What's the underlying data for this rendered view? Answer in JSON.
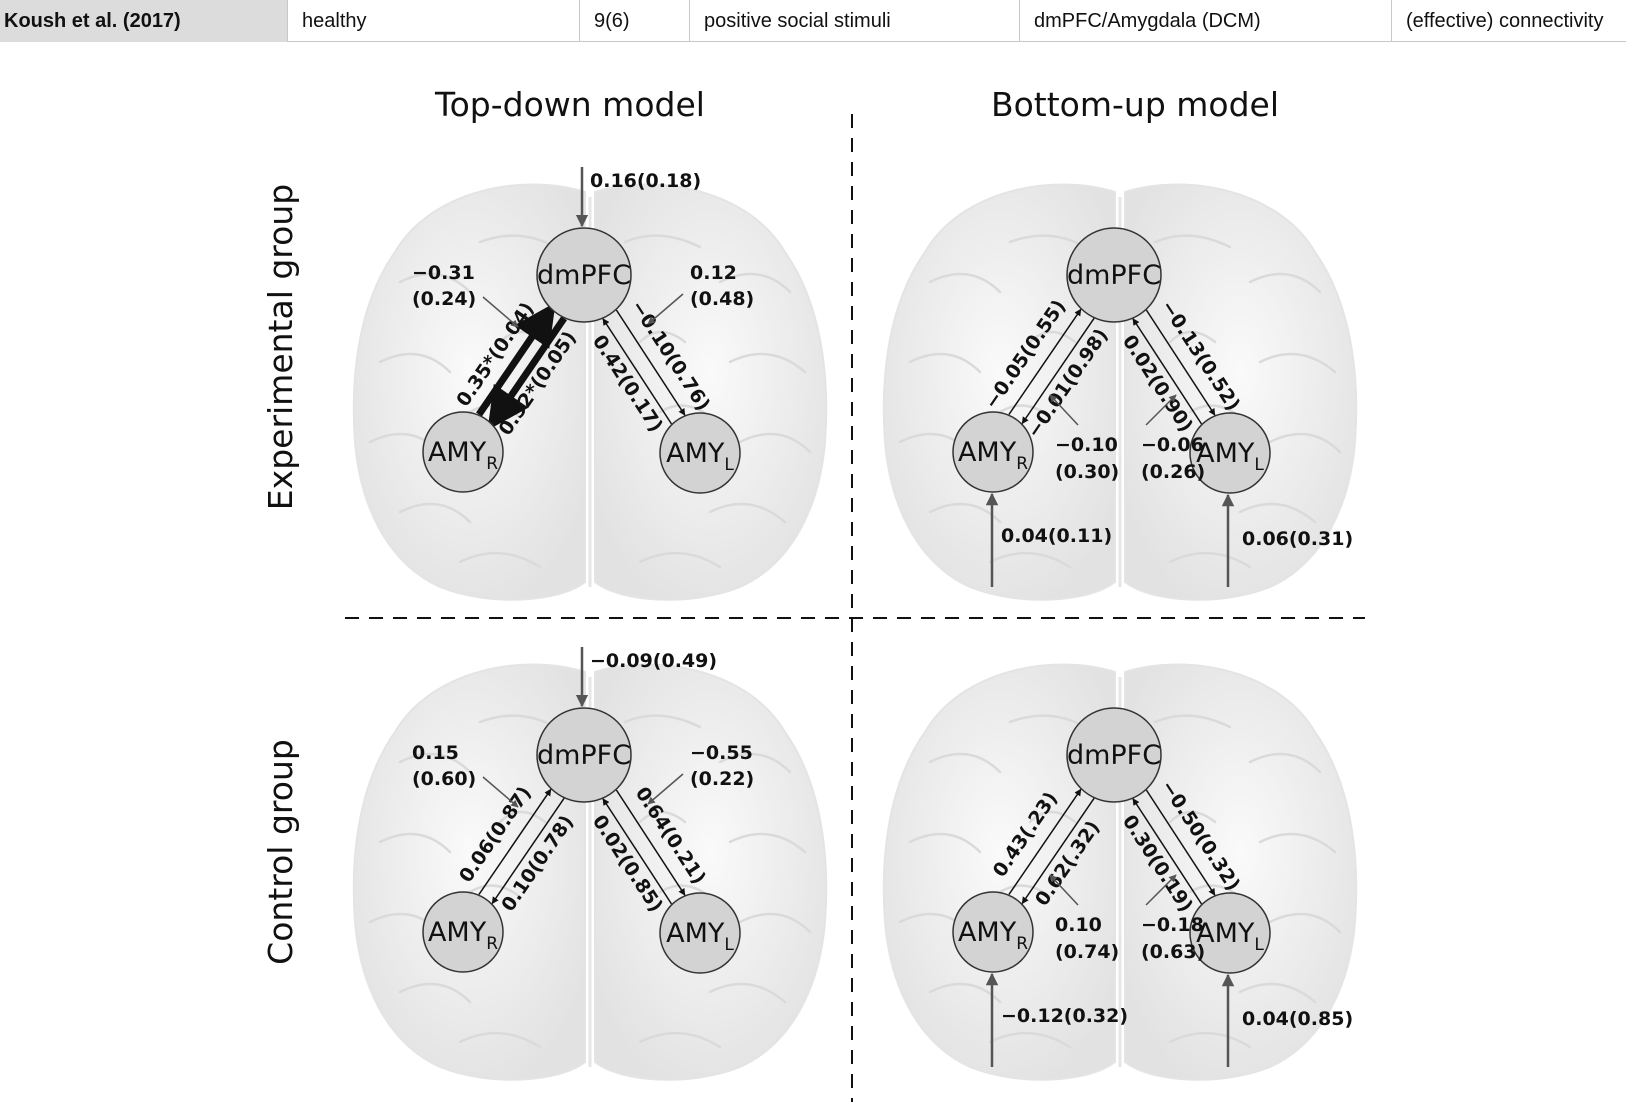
{
  "table": {
    "cells": [
      "Koush et al. (2017)",
      "healthy",
      "9(6)",
      "positive social stimuli",
      "dmPFC/Amygdala (DCM)",
      "(effective) connectivity"
    ]
  },
  "figure": {
    "col_titles": [
      "Top-down model",
      "Bottom-up model"
    ],
    "row_titles": [
      "Experimental group",
      "Control group"
    ],
    "nodes": {
      "dmpfc": "dmPFC",
      "amy": "AMY",
      "right_sub": "R",
      "left_sub": "L"
    },
    "panels": [
      {
        "model": "top-down",
        "input_dmpfc": "0.16(0.18)",
        "mod_r": [
          "−0.31",
          "(0.24)"
        ],
        "mod_l": [
          "0.12",
          "(0.48)"
        ],
        "edge_d_to_r": "0.52*(0.05)",
        "edge_r_to_d": "0.35*(0.04)",
        "edge_l_to_d": "0.42(0.17)",
        "edge_d_to_l": "−0.10(0.76)"
      },
      {
        "model": "bottom-up",
        "edge_d_to_r": "−0.01(0.98)",
        "edge_r_to_d": "−0.05(0.55)",
        "edge_l_to_d": "0.02(0.90)",
        "edge_d_to_l": "−0.13(0.52)",
        "mod_r": [
          "−0.10",
          "(0.30)"
        ],
        "mod_l": [
          "−0.06",
          "(0.26)"
        ],
        "input_r": "0.04(0.11)",
        "input_l": "0.06(0.31)"
      },
      {
        "model": "top-down",
        "input_dmpfc": "−0.09(0.49)",
        "mod_r": [
          "0.15",
          "(0.60)"
        ],
        "mod_l": [
          "−0.55",
          "(0.22)"
        ],
        "edge_d_to_r": "0.10(0.78)",
        "edge_r_to_d": "0.06(0.87)",
        "edge_l_to_d": "0.02(0.85)",
        "edge_d_to_l": "0.64(0.21)"
      },
      {
        "model": "bottom-up",
        "edge_d_to_r": "0.62(.32)",
        "edge_r_to_d": "0.43(.23)",
        "edge_l_to_d": "0.30(0.19)",
        "edge_d_to_l": "−0.50(0.32)",
        "mod_r": [
          "0.10",
          "(0.74)"
        ],
        "mod_l": [
          "−0.18",
          "(0.63)"
        ],
        "input_r": "−0.12(0.32)",
        "input_l": "0.04(0.85)"
      }
    ]
  }
}
